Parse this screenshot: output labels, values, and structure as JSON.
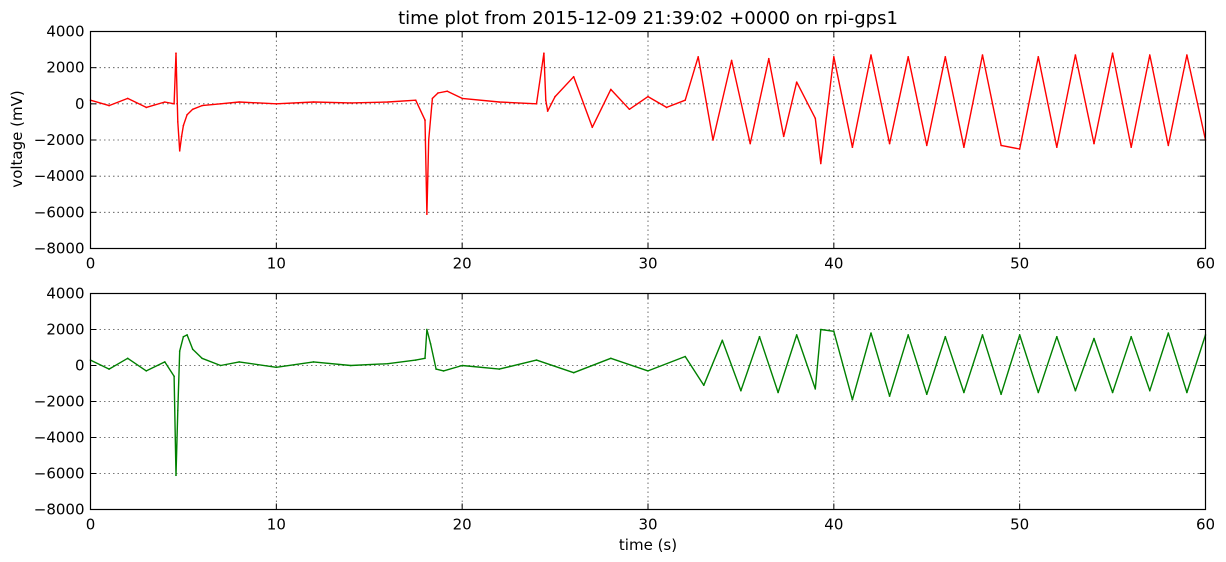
{
  "chart_data": [
    {
      "type": "line",
      "title": "time plot from 2015-12-09 21:39:02 +0000 on rpi-gps1",
      "xlabel": "",
      "ylabel": "voltage (mV)",
      "xlim": [
        0,
        60
      ],
      "ylim": [
        -8000,
        4000
      ],
      "xticks": [
        0,
        10,
        20,
        30,
        40,
        50,
        60
      ],
      "yticks": [
        -8000,
        -6000,
        -4000,
        -2000,
        0,
        2000,
        4000
      ],
      "xtick_labels": [
        "0",
        "10",
        "20",
        "30",
        "40",
        "50",
        "60"
      ],
      "ytick_labels": [
        "−8000",
        "−6000",
        "−4000",
        "−2000",
        "0",
        "2000",
        "4000"
      ],
      "grid": true,
      "color": "#ff0000",
      "series": [
        {
          "x": [
            0,
            1,
            2,
            3,
            4,
            4.5,
            4.6,
            4.7,
            4.8,
            4.9,
            5.0,
            5.2,
            5.5,
            6,
            7,
            8,
            10,
            12,
            14,
            16,
            17.5,
            18.0,
            18.1,
            18.2,
            18.4,
            18.7,
            19.2,
            20,
            22,
            24,
            24.4,
            24.5,
            24.6,
            25,
            26,
            27,
            28,
            29,
            30,
            31,
            32,
            32.7,
            33.5,
            34.5,
            35.5,
            36.5,
            37.3,
            38,
            39,
            39.3,
            40,
            41,
            42,
            43,
            44,
            45,
            46,
            47,
            48,
            49,
            50,
            51,
            52,
            53,
            54,
            55,
            56,
            57,
            58,
            59,
            60
          ],
          "y": [
            200,
            -100,
            300,
            -200,
            100,
            0,
            2800,
            -1000,
            -2600,
            -1800,
            -1200,
            -600,
            -300,
            -100,
            0,
            100,
            0,
            100,
            50,
            100,
            200,
            -900,
            -6100,
            -2000,
            300,
            600,
            700,
            300,
            100,
            0,
            2800,
            200,
            -400,
            400,
            1500,
            -1300,
            800,
            -300,
            400,
            -200,
            200,
            2600,
            -2000,
            2400,
            -2200,
            2500,
            -1800,
            1200,
            -800,
            -3300,
            2600,
            -2400,
            2700,
            -2200,
            2600,
            -2300,
            2600,
            -2400,
            2700,
            -2300,
            -2500,
            2600,
            -2400,
            2700,
            -2200,
            2800,
            -2400,
            2700,
            -2300,
            2700,
            -2000
          ]
        }
      ]
    },
    {
      "type": "line",
      "title": "",
      "xlabel": "time (s)",
      "ylabel": "",
      "xlim": [
        0,
        60
      ],
      "ylim": [
        -8000,
        4000
      ],
      "xticks": [
        0,
        10,
        20,
        30,
        40,
        50,
        60
      ],
      "yticks": [
        -8000,
        -6000,
        -4000,
        -2000,
        0,
        2000,
        4000
      ],
      "xtick_labels": [
        "0",
        "10",
        "20",
        "30",
        "40",
        "50",
        "60"
      ],
      "ytick_labels": [
        "−8000",
        "−6000",
        "−4000",
        "−2000",
        "0",
        "2000",
        "4000"
      ],
      "grid": true,
      "color": "#008000",
      "series": [
        {
          "x": [
            0,
            1,
            2,
            3,
            4,
            4.5,
            4.6,
            4.7,
            4.8,
            5.0,
            5.2,
            5.5,
            6,
            7,
            8,
            10,
            12,
            14,
            16,
            17.5,
            18.0,
            18.1,
            18.3,
            18.6,
            19,
            20,
            22,
            24,
            26,
            28,
            30,
            32,
            33,
            34,
            35,
            36,
            37,
            38,
            39,
            39.3,
            40,
            41,
            42,
            43,
            44,
            45,
            46,
            47,
            48,
            49,
            50,
            51,
            52,
            53,
            54,
            55,
            56,
            57,
            58,
            59,
            60
          ],
          "y": [
            300,
            -200,
            400,
            -300,
            200,
            -600,
            -6100,
            -2500,
            800,
            1600,
            1700,
            900,
            400,
            0,
            200,
            -100,
            200,
            0,
            100,
            300,
            400,
            2000,
            1200,
            -200,
            -300,
            0,
            -200,
            300,
            -400,
            400,
            -300,
            500,
            -1100,
            1400,
            -1400,
            1600,
            -1500,
            1700,
            -1300,
            2000,
            1900,
            -1900,
            1800,
            -1700,
            1700,
            -1600,
            1600,
            -1500,
            1700,
            -1600,
            1700,
            -1500,
            1600,
            -1400,
            1500,
            -1500,
            1600,
            -1400,
            1800,
            -1500,
            1700
          ]
        }
      ]
    }
  ]
}
